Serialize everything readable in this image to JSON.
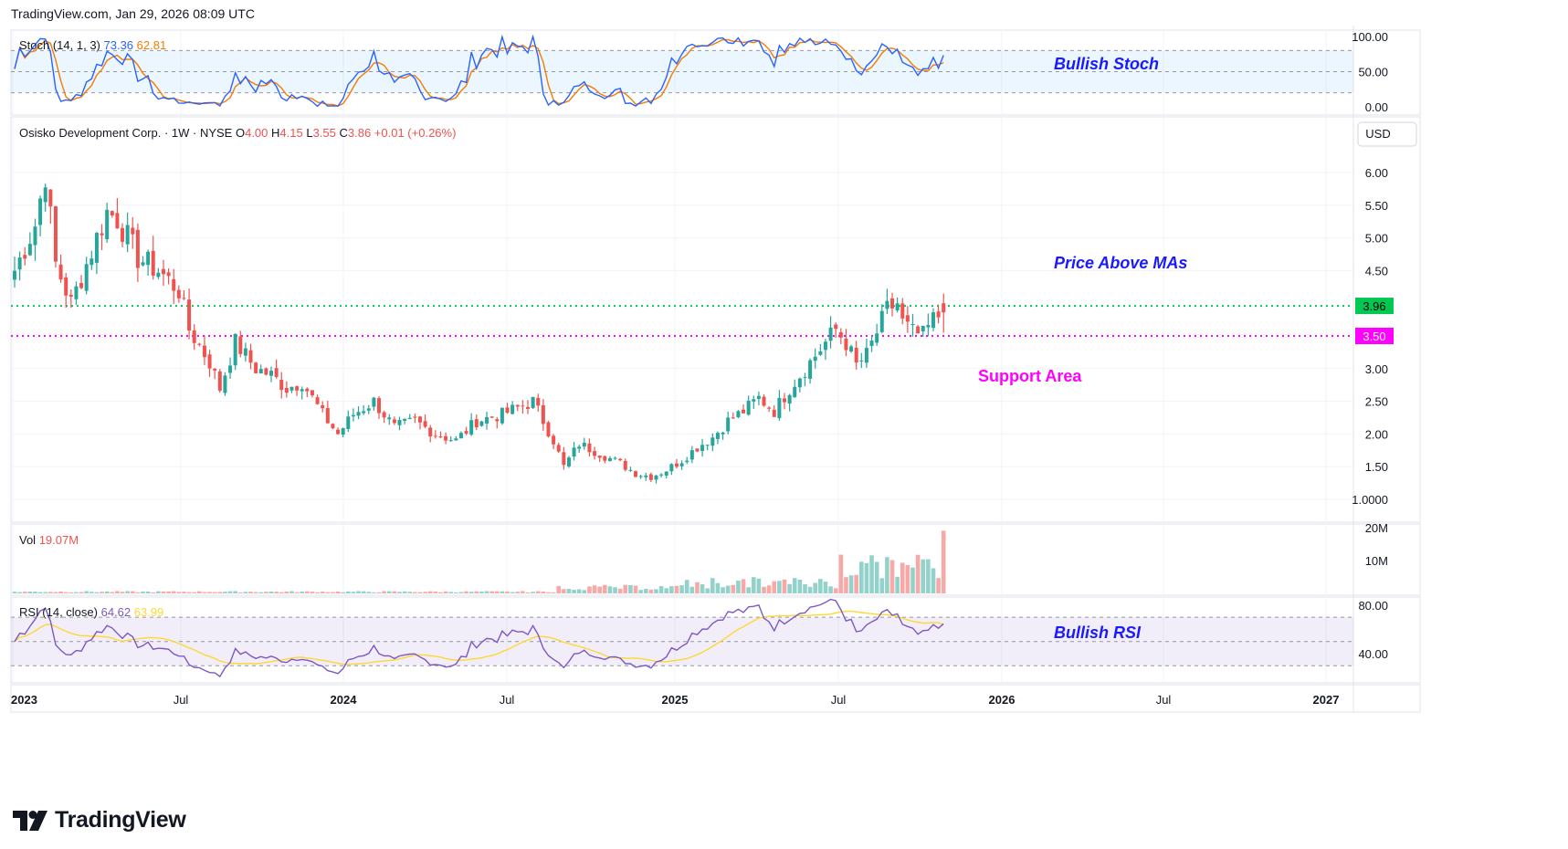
{
  "header": {
    "text": "TradingView.com, Jan 29, 2026 08:09 UTC"
  },
  "brand": {
    "name": "TradingView"
  },
  "colors": {
    "up": "#26a69a",
    "down": "#ef5350",
    "stoch_k": "#2962ff",
    "stoch_d": "#f57c00",
    "rsi": "#7e57c2",
    "rsi_ma": "#fdd835",
    "resistance": "#00c853",
    "support": "#ff00ff",
    "annotation_blue": "#1a1aff",
    "annotation_magenta": "#ff00ff",
    "vol_up": "#93d2cb",
    "vol_down": "#f7a9a7"
  },
  "stoch": {
    "label": "Stoch (14, 1, 3)",
    "k": "73.36",
    "d": "62.81",
    "axis": [
      "100.00",
      "50.00",
      "0.00"
    ],
    "bands": [
      80,
      50,
      20
    ],
    "annotation": "Bullish Stoch"
  },
  "price": {
    "legend": {
      "name": "Osisko Development Corp. · 1W · NYSE",
      "o_label": "O",
      "o": "4.00",
      "h_label": "H",
      "h": "4.15",
      "l_label": "L",
      "l": "3.55",
      "c_label": "C",
      "c": "3.86",
      "change": "+0.01 (+0.26%)"
    },
    "currency": "USD",
    "axis": [
      "6.00",
      "5.50",
      "5.00",
      "4.50",
      "3.00",
      "2.50",
      "2.00",
      "1.50",
      "1.0000"
    ],
    "resistance": {
      "value": 3.96,
      "label": "3.96"
    },
    "support": {
      "value": 3.5,
      "label": "3.50"
    },
    "annotations": {
      "above_mas": "Price Above MAs",
      "support_area": "Support Area"
    }
  },
  "volume": {
    "label": "Vol",
    "value": "19.07M",
    "axis": [
      "20M",
      "10M"
    ]
  },
  "rsi": {
    "label": "RSI (14, close)",
    "value": "64.62",
    "ma": "63.99",
    "axis": [
      "80.00",
      "40.00"
    ],
    "bands": [
      70,
      50,
      30
    ],
    "annotation": "Bullish RSI"
  },
  "time_axis": [
    "2023",
    "Jul",
    "2024",
    "Jul",
    "2025",
    "Jul",
    "2026",
    "Jul",
    "2027"
  ],
  "chart_data": {
    "type": "candlestick",
    "interval": "1W",
    "x_range": [
      "2023-01",
      "2027-01"
    ],
    "price_range": [
      1.0,
      6.3
    ],
    "close_anchors": [
      {
        "t": 0,
        "c": 4.5
      },
      {
        "t": 4,
        "c": 5.2
      },
      {
        "t": 6,
        "c": 6.0
      },
      {
        "t": 8,
        "c": 4.6
      },
      {
        "t": 11,
        "c": 4.0
      },
      {
        "t": 15,
        "c": 4.8
      },
      {
        "t": 18,
        "c": 5.4
      },
      {
        "t": 20,
        "c": 5.3
      },
      {
        "t": 24,
        "c": 4.7
      },
      {
        "t": 28,
        "c": 4.5
      },
      {
        "t": 32,
        "c": 4.2
      },
      {
        "t": 34,
        "c": 3.6
      },
      {
        "t": 38,
        "c": 3.1
      },
      {
        "t": 40,
        "c": 2.7
      },
      {
        "t": 43,
        "c": 3.4
      },
      {
        "t": 47,
        "c": 3.0
      },
      {
        "t": 50,
        "c": 2.9
      },
      {
        "t": 53,
        "c": 2.7
      },
      {
        "t": 56,
        "c": 2.8
      },
      {
        "t": 60,
        "c": 2.3
      },
      {
        "t": 63,
        "c": 2.0
      },
      {
        "t": 66,
        "c": 2.3
      },
      {
        "t": 70,
        "c": 2.5
      },
      {
        "t": 74,
        "c": 2.1
      },
      {
        "t": 78,
        "c": 2.2
      },
      {
        "t": 82,
        "c": 2.0
      },
      {
        "t": 86,
        "c": 1.9
      },
      {
        "t": 90,
        "c": 2.2
      },
      {
        "t": 95,
        "c": 2.3
      },
      {
        "t": 98,
        "c": 2.4
      },
      {
        "t": 101,
        "c": 2.5
      },
      {
        "t": 103,
        "c": 2.2
      },
      {
        "t": 105,
        "c": 1.9
      },
      {
        "t": 107,
        "c": 1.5
      },
      {
        "t": 110,
        "c": 1.85
      },
      {
        "t": 114,
        "c": 1.7
      },
      {
        "t": 118,
        "c": 1.55
      },
      {
        "t": 121,
        "c": 1.4
      },
      {
        "t": 124,
        "c": 1.35
      },
      {
        "t": 127,
        "c": 1.45
      },
      {
        "t": 130,
        "c": 1.6
      },
      {
        "t": 133,
        "c": 1.8
      },
      {
        "t": 136,
        "c": 1.95
      },
      {
        "t": 139,
        "c": 2.2
      },
      {
        "t": 142,
        "c": 2.35
      },
      {
        "t": 145,
        "c": 2.55
      },
      {
        "t": 148,
        "c": 2.35
      },
      {
        "t": 151,
        "c": 2.7
      },
      {
        "t": 154,
        "c": 3.0
      },
      {
        "t": 157,
        "c": 3.3
      },
      {
        "t": 160,
        "c": 3.6
      },
      {
        "t": 162,
        "c": 3.4
      },
      {
        "t": 164,
        "c": 3.05
      },
      {
        "t": 166,
        "c": 3.2
      },
      {
        "t": 168,
        "c": 3.55
      },
      {
        "t": 170,
        "c": 3.9
      },
      {
        "t": 172,
        "c": 4.0
      },
      {
        "t": 173,
        "c": 3.7
      },
      {
        "t": 175,
        "c": 3.55
      },
      {
        "t": 177,
        "c": 3.5
      },
      {
        "t": 179,
        "c": 3.75
      },
      {
        "t": 181,
        "c": 3.86
      }
    ],
    "last_candle": {
      "o": 4.0,
      "h": 4.15,
      "l": 3.55,
      "c": 3.86
    },
    "volume_last": 19.07,
    "stoch_last": {
      "k": 73.36,
      "d": 62.81
    },
    "rsi_last": {
      "rsi": 64.62,
      "ma": 63.99
    }
  }
}
